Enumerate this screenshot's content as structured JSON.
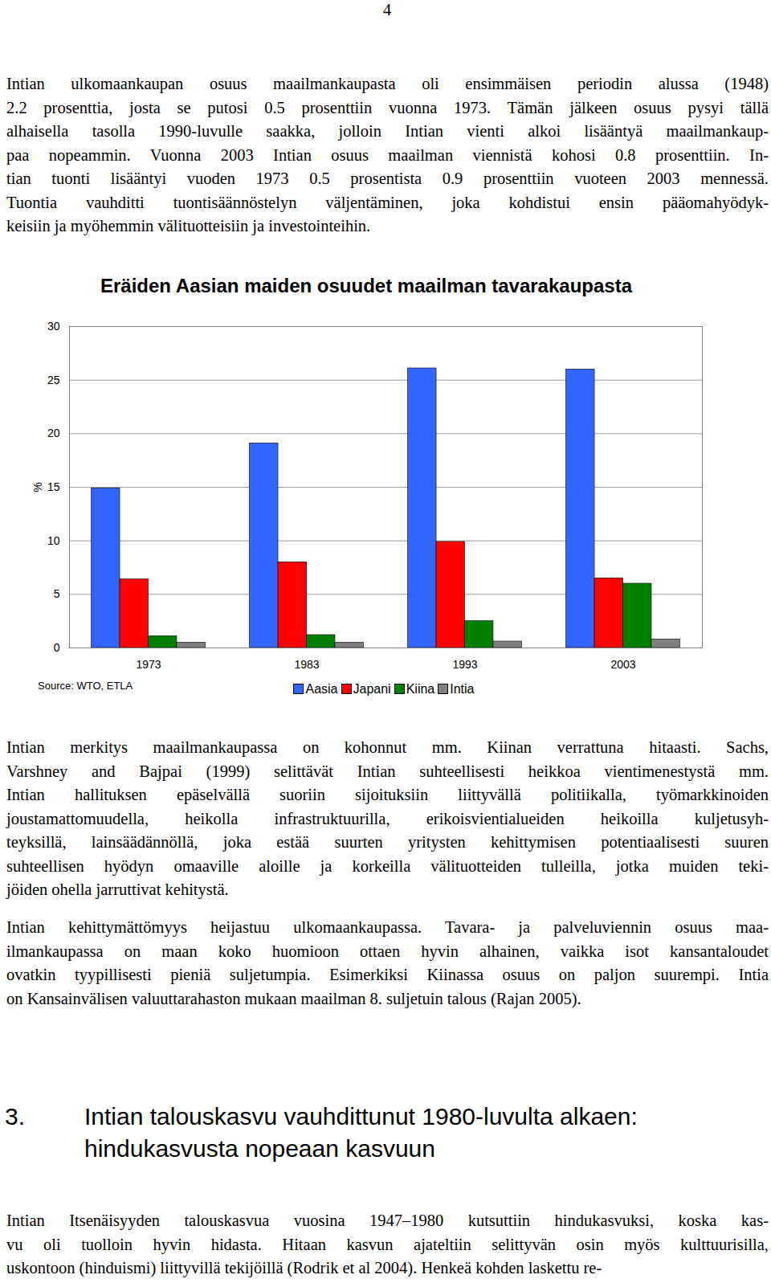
{
  "page_number": "4",
  "paragraphs_before": [
    [
      "Intian ulkomaankaupan osuus maailmankaupasta oli ensimmäisen periodin alussa (1948)",
      "2.2 prosenttia, josta se putosi 0.5 prosenttiin vuonna 1973. Tämän jälkeen osuus pysyi tällä",
      "alhaisella tasolla 1990-luvulle saakka, jolloin Intian vienti alkoi lisääntyä maailmankaup-",
      "paa nopeammin. Vuonna 2003 Intian osuus maailman viennistä kohosi 0.8 prosenttiin. In-",
      "tian tuonti lisääntyi vuoden 1973 0.5 prosentista 0.9 prosenttiin vuoteen 2003 mennessä.",
      "Tuontia vauhditti tuontisäännöstelyn väljentäminen, joka kohdistui ensin pääomahyödyk-",
      "keisiin ja myöhemmin välituotteisiin ja investointeihin."
    ]
  ],
  "chart_data": {
    "type": "bar",
    "title": "Eräiden Aasian maiden osuudet maailman tavarakaupasta",
    "ylabel": "%",
    "source": "Source: WTO, ETLA",
    "categories": [
      "1973",
      "1983",
      "1993",
      "2003"
    ],
    "series": [
      {
        "name": "Aasia",
        "color": "#3366ff",
        "values": [
          14.9,
          19.1,
          26.1,
          26.0
        ]
      },
      {
        "name": "Japani",
        "color": "#ff0000",
        "values": [
          6.4,
          8.0,
          9.9,
          6.5
        ]
      },
      {
        "name": "Kiina",
        "color": "#008000",
        "values": [
          1.1,
          1.2,
          2.5,
          6.0
        ]
      },
      {
        "name": "Intia",
        "color": "#808080",
        "values": [
          0.5,
          0.5,
          0.6,
          0.8
        ]
      }
    ],
    "ylim": [
      0,
      30
    ],
    "yticks": [
      0,
      5,
      10,
      15,
      20,
      25,
      30
    ],
    "grid": true,
    "legend": "bottom"
  },
  "paragraphs_after": [
    [
      "Intian merkitys maailmankaupassa on kohonnut mm. Kiinan verrattuna hitaasti. Sachs,",
      "Varshney and Bajpai (1999) selittävät Intian suhteellisesti heikkoa vientimenestystä mm.",
      "Intian hallituksen epäselvällä suoriin sijoituksiin liittyvällä politiikalla, työmarkkinoiden",
      "joustamattomuudella, heikolla infrastruktuurilla, erikoisvientialueiden heikoilla kuljetusyh-",
      "teyksillä, lainsäädännöllä, joka estää suurten yritysten kehittymisen potentiaalisesti suuren",
      "suhteellisen hyödyn omaaville aloille ja korkeilla välituotteiden tulleilla, jotka muiden teki-",
      "jöiden ohella jarruttivat kehitystä."
    ],
    [
      "Intian kehittymättömyys heijastuu ulkomaankaupassa. Tavara- ja palveluviennin osuus maa-",
      "ilmankaupassa on maan koko huomioon ottaen hyvin alhainen, vaikka isot kansantaloudet",
      "ovatkin tyypillisesti pieniä suljetumpia. Esimerkiksi Kiinassa osuus on paljon suurempi. Intia",
      "on Kansainvälisen valuuttarahaston mukaan maailman 8. suljetuin talous (Rajan 2005)."
    ]
  ],
  "section": {
    "number": "3.",
    "title_lines": [
      "Intian talouskasvu vauhdittunut 1980-luvulta alkaen:",
      "hindukasvusta nopeaan kasvuun"
    ]
  },
  "paragraphs_end": [
    [
      "Intian Itsenäisyyden talouskasvua vuosina 1947–1980 kutsuttiin hindukasvuksi, koska kas-",
      "vu oli tuolloin hyvin hidasta. Hitaan kasvun ajateltiin selittyvän osin myös kulttuurisilla,",
      "uskontoon (hinduismi) liittyvillä tekijöillä (Rodrik et al 2004). Henkeä kohden laskettu re-"
    ]
  ]
}
